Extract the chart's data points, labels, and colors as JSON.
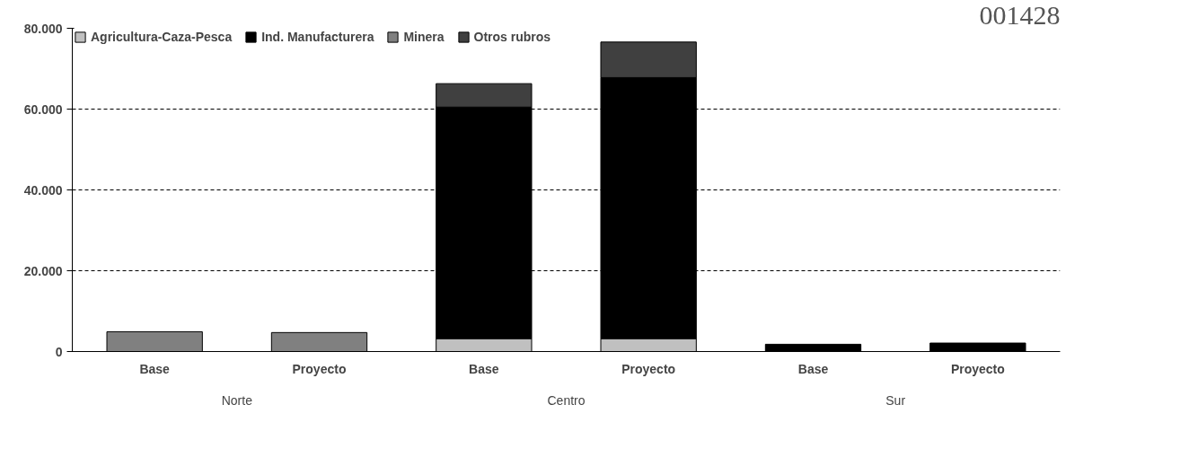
{
  "chart_data": {
    "type": "bar",
    "stacked": true,
    "categories": [
      "Base",
      "Proyecto",
      "Base",
      "Proyecto",
      "Base",
      "Proyecto"
    ],
    "series": [
      {
        "name": "Agricultura-Caza-Pesca",
        "color": "#c0c0c0",
        "values": [
          null,
          null,
          3200,
          3200,
          null,
          null
        ]
      },
      {
        "name": "Ind. Manufacturera",
        "color": "#000000",
        "values": [
          null,
          null,
          57300,
          64600,
          1800,
          2100
        ]
      },
      {
        "name": "Minera",
        "color": "#808080",
        "values": [
          4900,
          4700,
          null,
          null,
          null,
          null
        ]
      },
      {
        "name": "Otros rubros",
        "color": "#404040",
        "values": [
          null,
          null,
          5800,
          8800,
          null,
          null
        ]
      }
    ],
    "ylim": [
      0,
      80000
    ],
    "yticks": [
      {
        "value": 0,
        "label": "0"
      },
      {
        "value": 20000,
        "label": "20.000"
      },
      {
        "value": 40000,
        "label": "40.000"
      },
      {
        "value": 60000,
        "label": "60.000"
      },
      {
        "value": 80000,
        "label": "80.000"
      }
    ],
    "grid": "y",
    "legend": "top",
    "annotations": [
      "Norte",
      "Centro",
      "Sur",
      "001428"
    ]
  }
}
